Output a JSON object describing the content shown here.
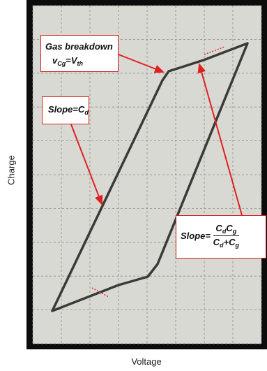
{
  "axes": {
    "y_label": "Charge",
    "x_label": "Voltage"
  },
  "annotations": [
    {
      "title": "Gas breakdown",
      "formula": [
        {
          "base": "v",
          "sub": "Cg"
        },
        {
          "base": "=V",
          "sub": "th"
        }
      ]
    },
    {
      "formula": [
        {
          "base": "Slope=C",
          "sub": "d"
        }
      ]
    },
    {
      "prefix": "Slope=",
      "numerator": [
        {
          "base": "C",
          "sub": "d"
        },
        {
          "base": "C",
          "sub": "g"
        }
      ],
      "denominator": [
        {
          "base": "C",
          "sub": "d"
        },
        {
          "base": "+C",
          "sub": "g"
        }
      ]
    }
  ]
}
